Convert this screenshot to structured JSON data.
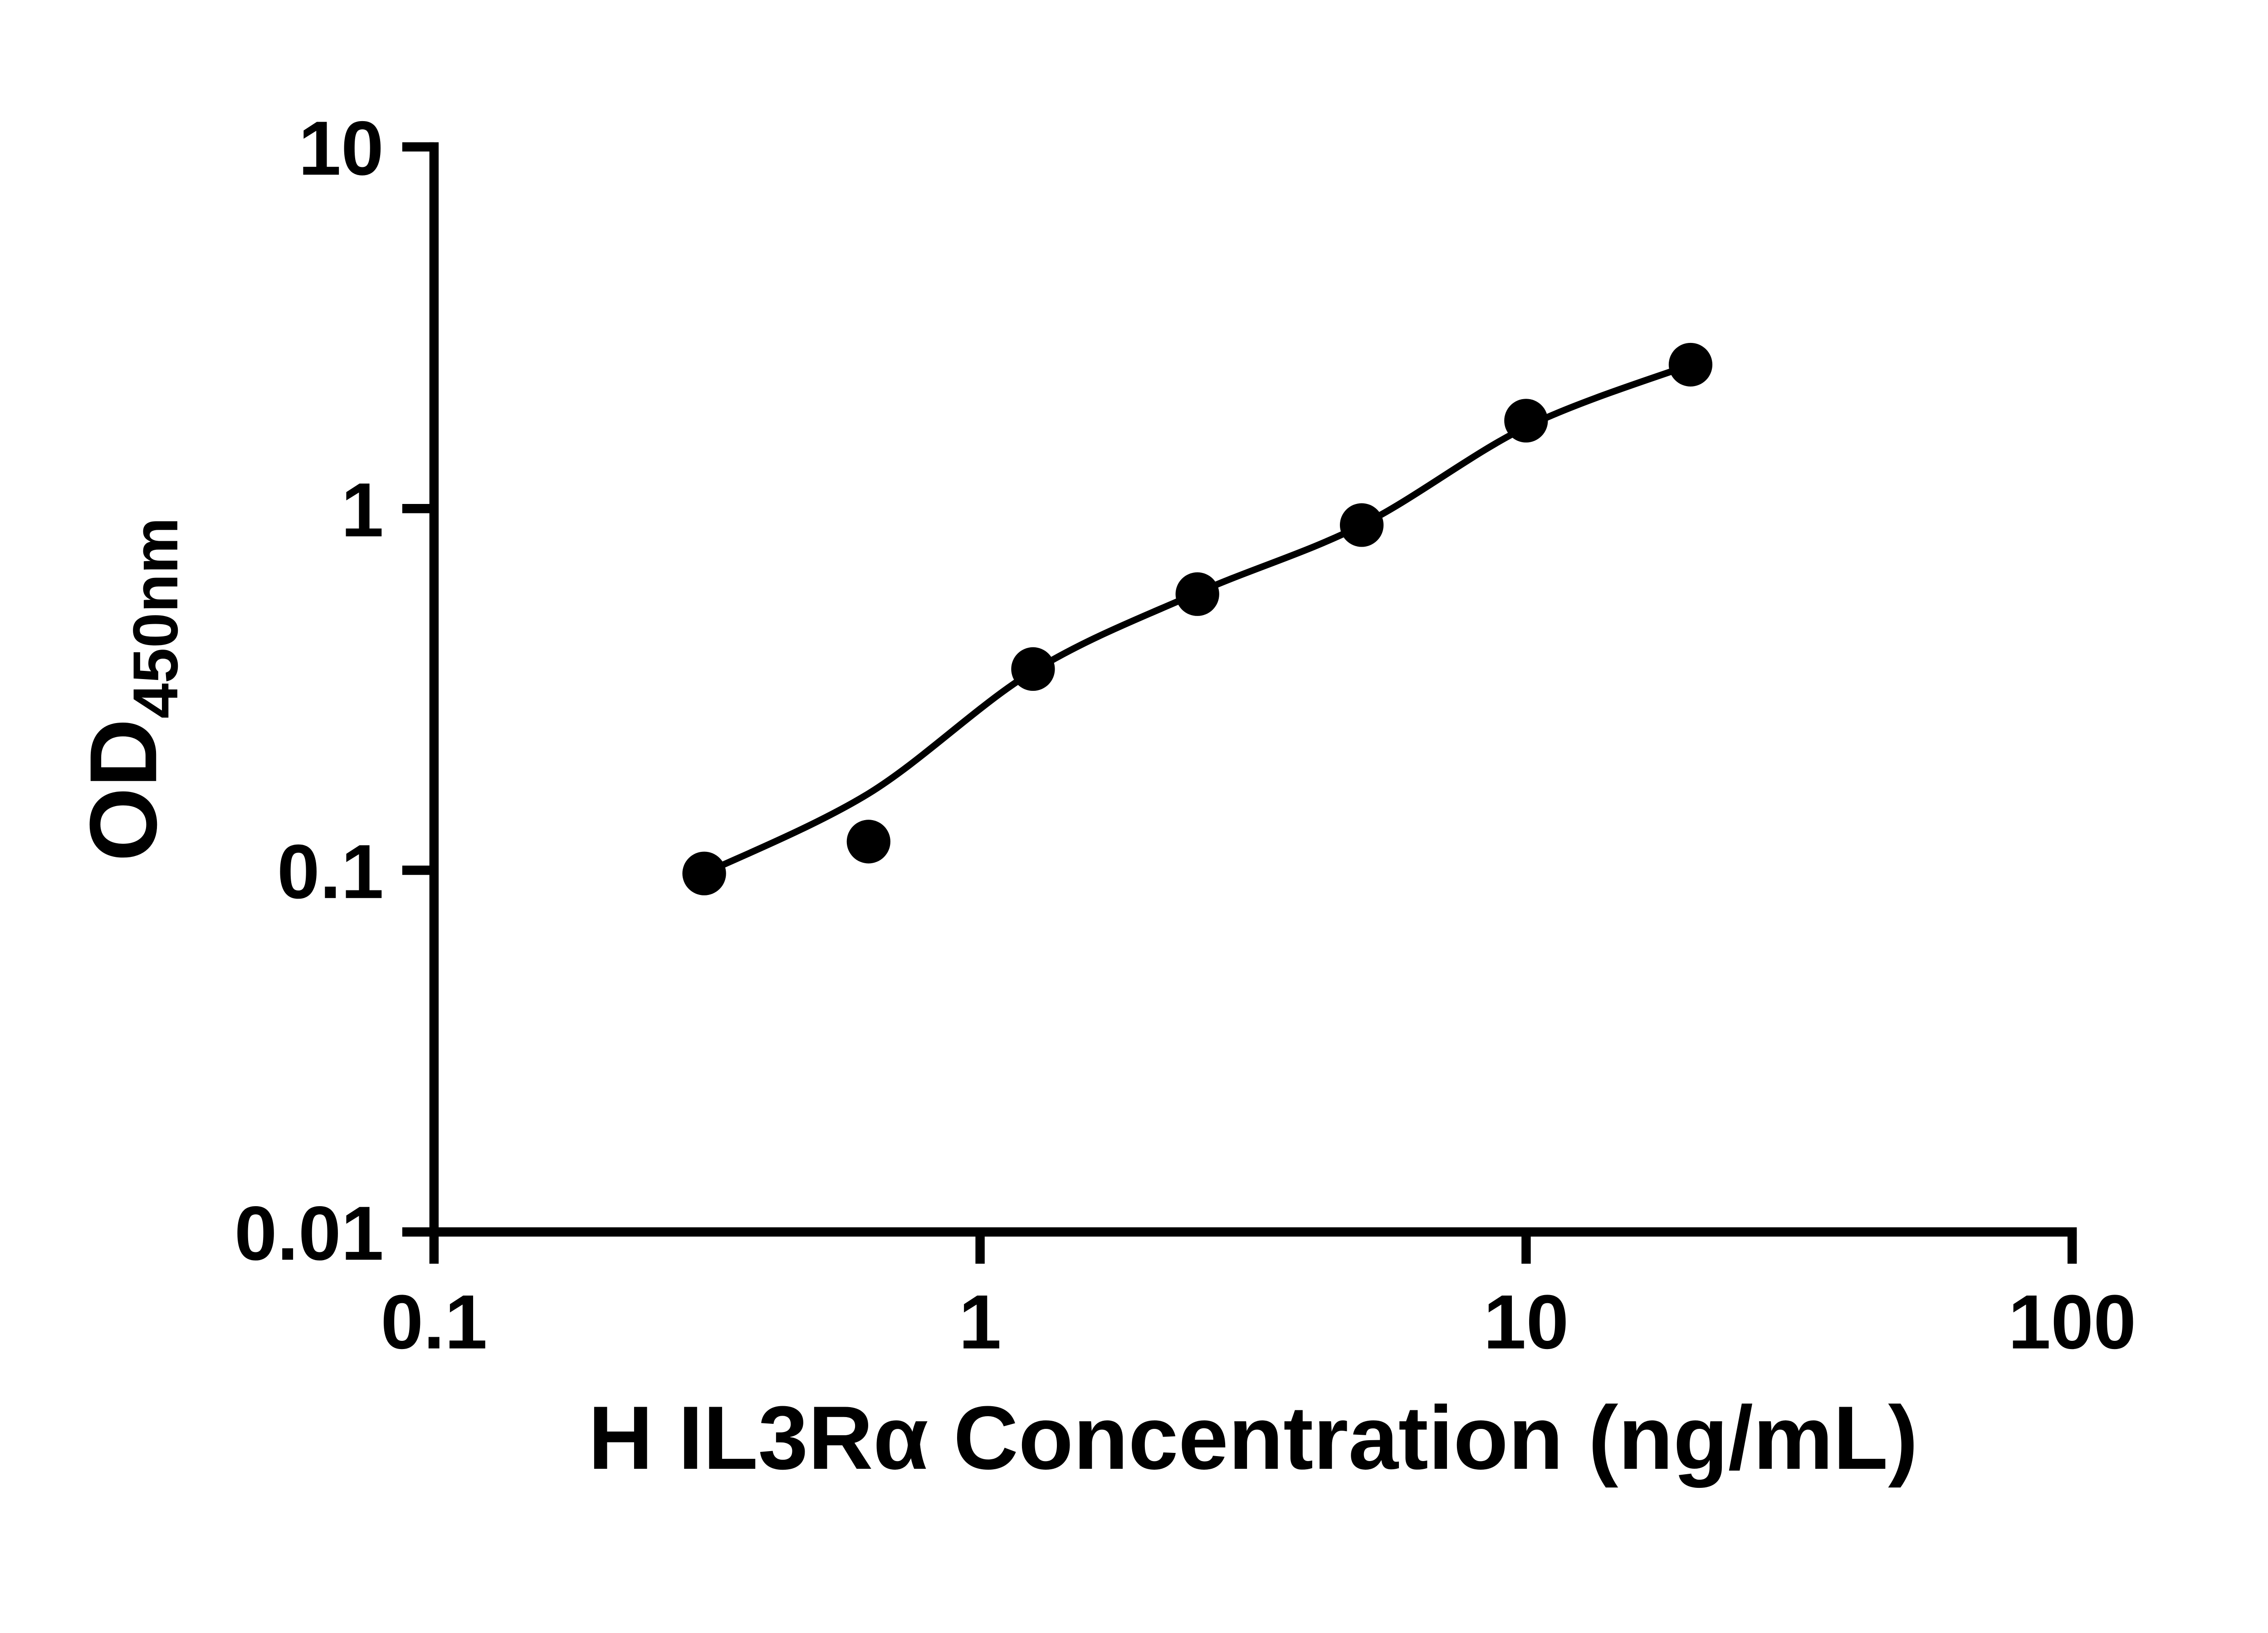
{
  "chart_data": {
    "type": "scatter",
    "title": "",
    "xlabel": "H IL3Rα Concentration (ng/mL)",
    "ylabel_main": "OD",
    "ylabel_sub": "450nm",
    "x_scale": "log",
    "y_scale": "log",
    "xlim": [
      0.1,
      100
    ],
    "ylim": [
      0.01,
      10
    ],
    "grid": false,
    "legend": "none",
    "background": "#ffffff",
    "axis_color": "#000000",
    "marker_color": "#000000",
    "line_color": "#000000",
    "x_ticks": [
      {
        "value": 0.1,
        "label": "0.1"
      },
      {
        "value": 1,
        "label": "1"
      },
      {
        "value": 10,
        "label": "10"
      },
      {
        "value": 100,
        "label": "100"
      }
    ],
    "y_ticks": [
      {
        "value": 0.01,
        "label": "0.01"
      },
      {
        "value": 0.1,
        "label": "0.1"
      },
      {
        "value": 1,
        "label": "1"
      },
      {
        "value": 10,
        "label": "10"
      }
    ],
    "points": [
      {
        "x": 0.3125,
        "y": 0.098
      },
      {
        "x": 0.625,
        "y": 0.12
      },
      {
        "x": 1.25,
        "y": 0.36
      },
      {
        "x": 2.5,
        "y": 0.58
      },
      {
        "x": 5,
        "y": 0.9
      },
      {
        "x": 10,
        "y": 1.75
      },
      {
        "x": 20,
        "y": 2.5
      }
    ],
    "fit_curve": {
      "type": "4PL-fit",
      "samples": [
        {
          "x": 0.3125,
          "y": 0.098
        },
        {
          "x": 0.625,
          "y": 0.163
        },
        {
          "x": 1.25,
          "y": 0.355
        },
        {
          "x": 2.5,
          "y": 0.585
        },
        {
          "x": 5,
          "y": 0.9
        },
        {
          "x": 10,
          "y": 1.68
        },
        {
          "x": 20,
          "y": 2.5
        }
      ]
    }
  }
}
